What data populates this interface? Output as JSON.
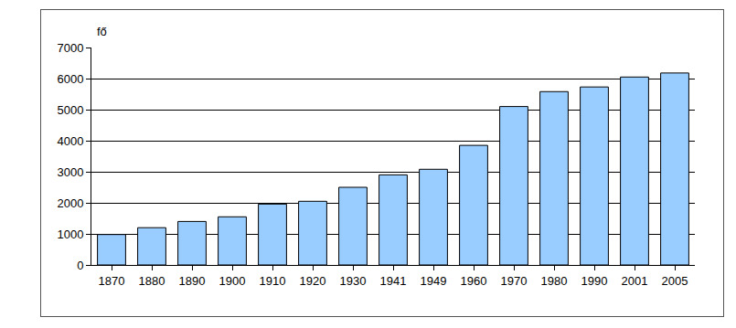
{
  "chart_data": {
    "type": "bar",
    "ylabel": "fő",
    "categories": [
      "1870",
      "1880",
      "1890",
      "1900",
      "1910",
      "1920",
      "1930",
      "1941",
      "1949",
      "1960",
      "1970",
      "1980",
      "1990",
      "2001",
      "2005"
    ],
    "values": [
      980,
      1200,
      1400,
      1550,
      1960,
      2050,
      2500,
      2900,
      3080,
      3850,
      5100,
      5580,
      5730,
      6050,
      6180
    ],
    "color": "#99ccff",
    "ylim": [
      0,
      7000
    ],
    "yticks": [
      0,
      1000,
      2000,
      3000,
      4000,
      5000,
      6000,
      7000
    ],
    "grid": true
  }
}
